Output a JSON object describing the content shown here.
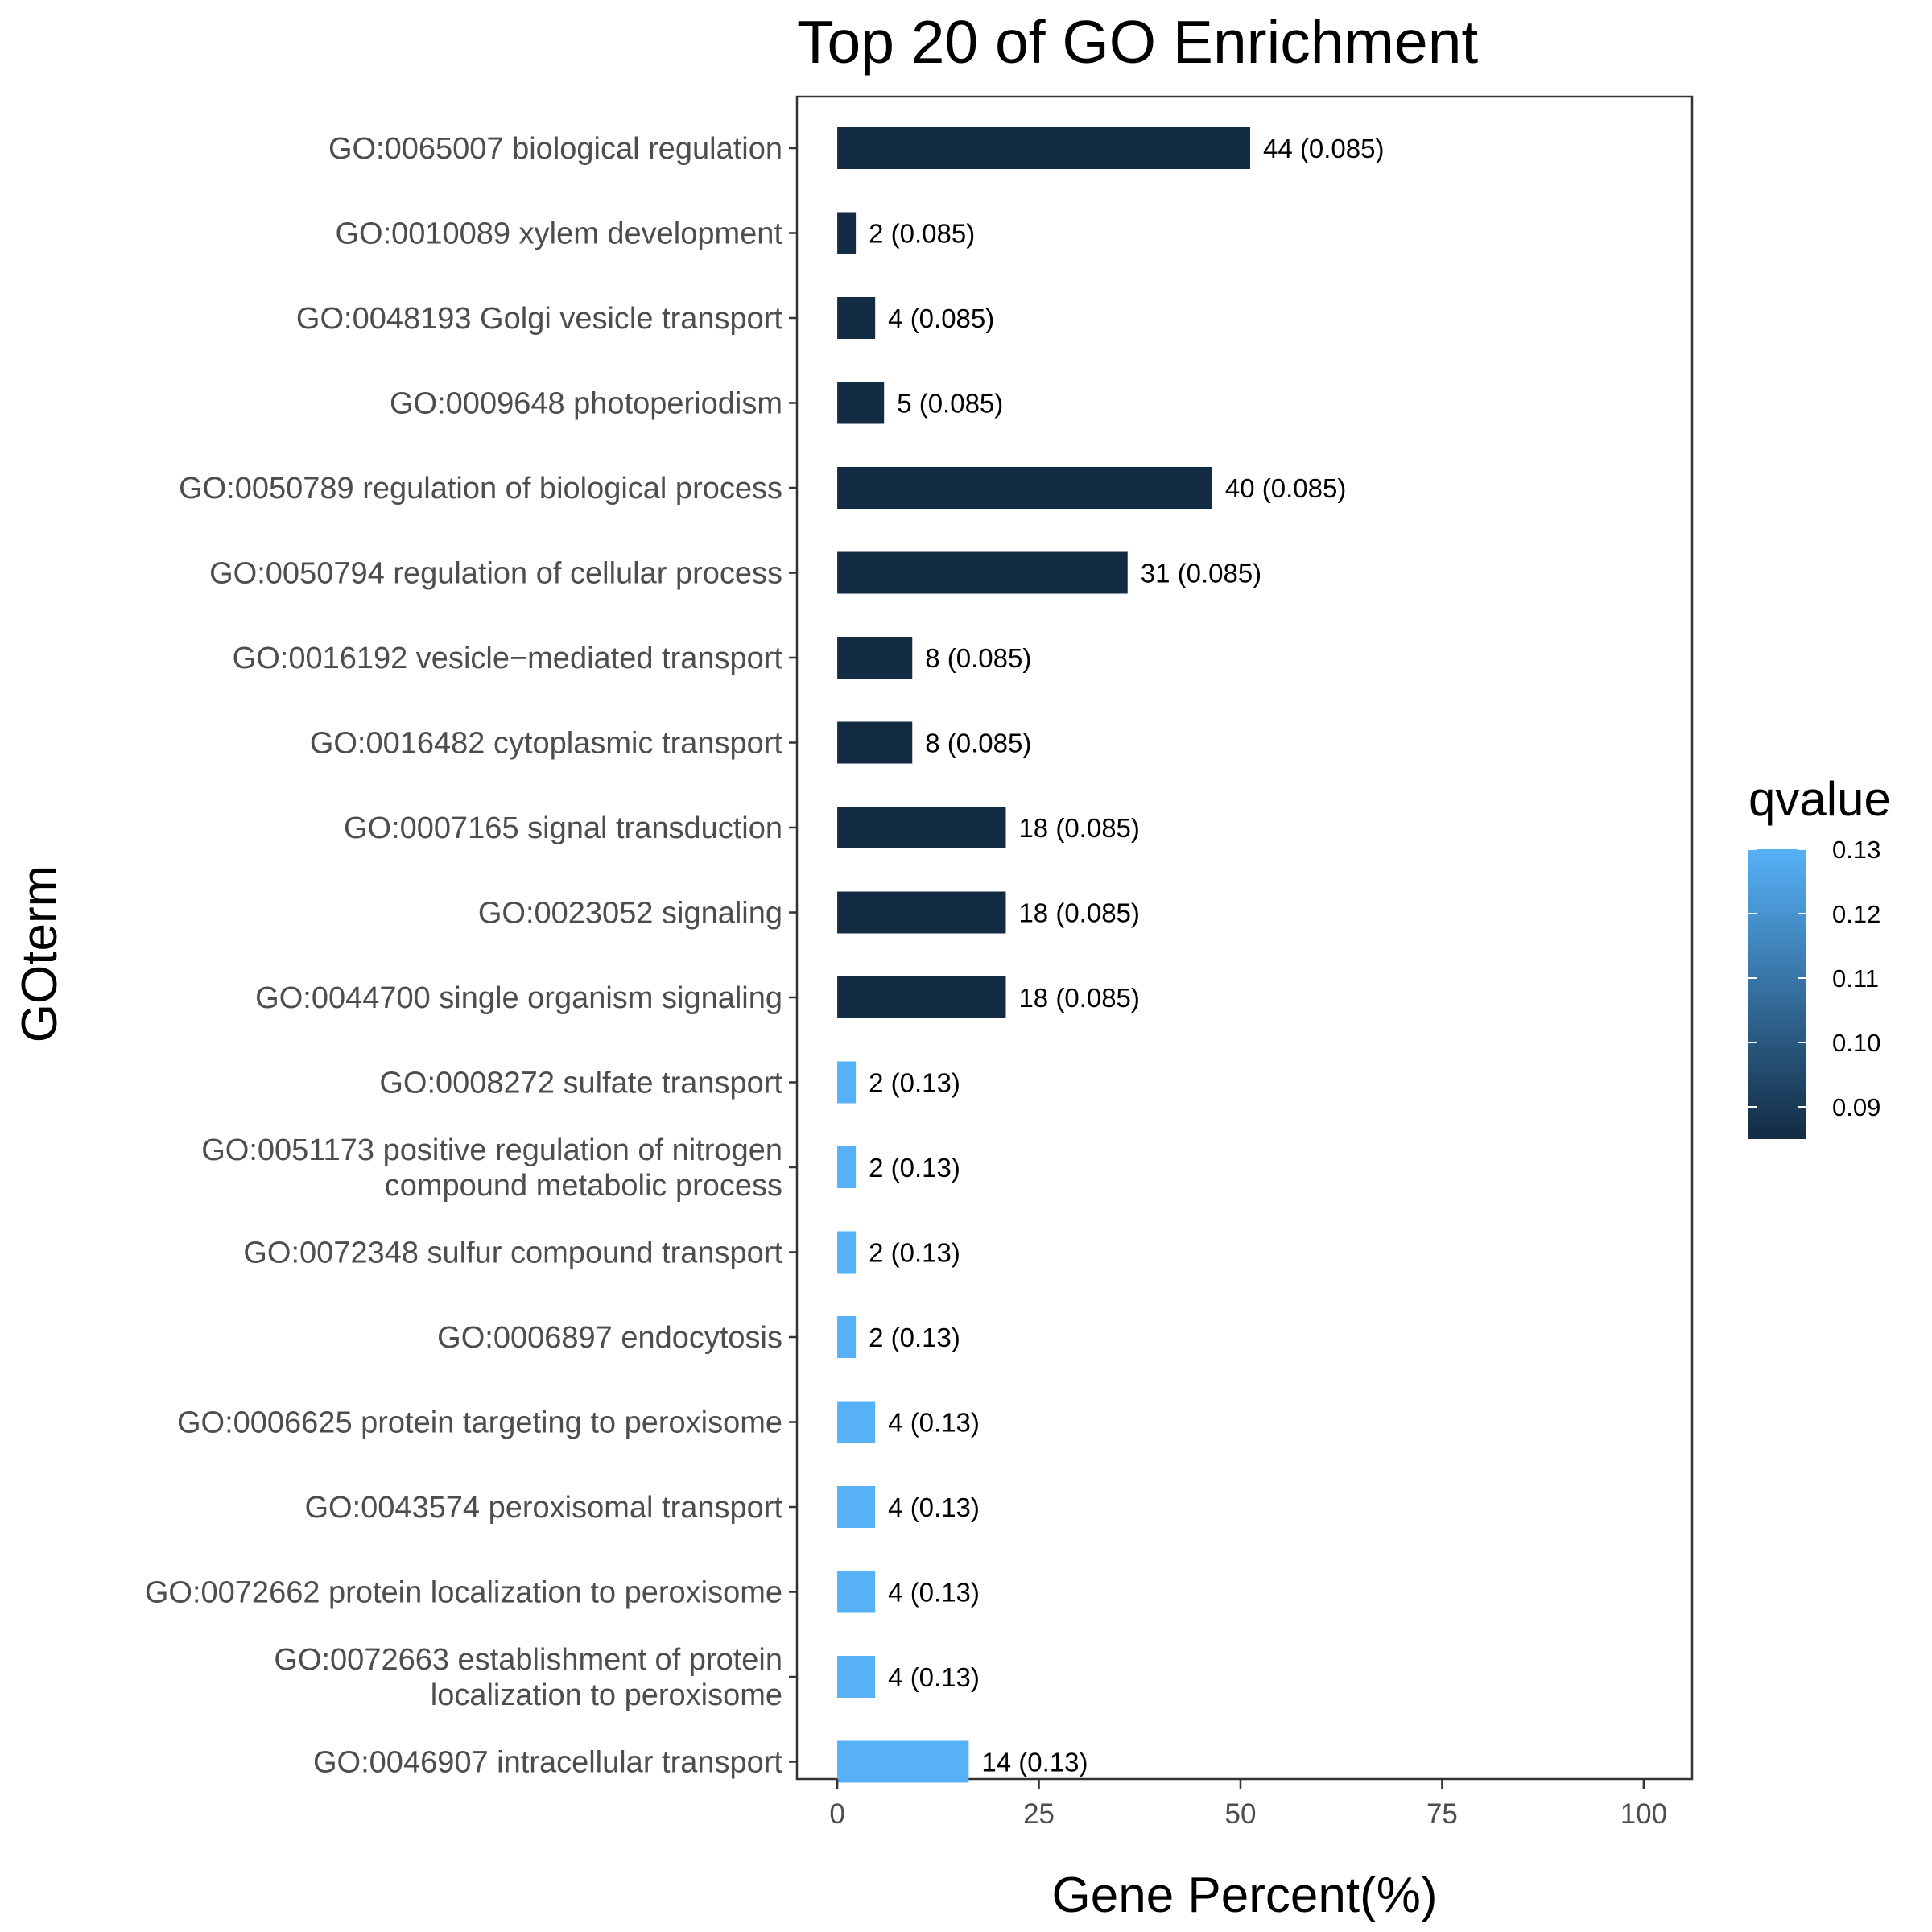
{
  "chart_data": {
    "type": "bar",
    "orientation": "horizontal",
    "title": "Top 20 of GO Enrichment",
    "xlabel": "Gene Percent(%)",
    "ylabel": "GOterm",
    "xlim": [
      -5,
      106
    ],
    "xticks": [
      0,
      25,
      50,
      75,
      100
    ],
    "grid": false,
    "legend": {
      "title": "qvalue",
      "position": "right",
      "type": "colorbar",
      "range": [
        0.085,
        0.13
      ],
      "ticks": [
        "0.09",
        "0.10",
        "0.11",
        "0.12",
        "0.13"
      ],
      "tick_values": [
        0.09,
        0.1,
        0.11,
        0.12,
        0.13
      ],
      "low_color": "#132b43",
      "high_color": "#56b1f7"
    },
    "series": [
      {
        "values": [
          51.2,
          2.3,
          4.7,
          5.8,
          46.5,
          36.0,
          9.3,
          9.3,
          20.9,
          20.9,
          20.9,
          2.3,
          2.3,
          2.3,
          2.3,
          4.7,
          4.7,
          4.7,
          4.7,
          16.3
        ],
        "qvalues": [
          0.085,
          0.085,
          0.085,
          0.085,
          0.085,
          0.085,
          0.085,
          0.085,
          0.085,
          0.085,
          0.085,
          0.13,
          0.13,
          0.13,
          0.13,
          0.13,
          0.13,
          0.13,
          0.13,
          0.13
        ]
      }
    ],
    "categories": [
      [
        "GO:0065007 biological regulation"
      ],
      [
        "GO:0010089 xylem development"
      ],
      [
        "GO:0048193 Golgi vesicle transport"
      ],
      [
        "GO:0009648 photoperiodism"
      ],
      [
        "GO:0050789 regulation of biological process"
      ],
      [
        "GO:0050794 regulation of cellular process"
      ],
      [
        "GO:0016192 vesicle−mediated transport"
      ],
      [
        "GO:0016482 cytoplasmic transport"
      ],
      [
        "GO:0007165 signal transduction"
      ],
      [
        "GO:0023052 signaling"
      ],
      [
        "GO:0044700 single organism signaling"
      ],
      [
        "GO:0008272 sulfate transport"
      ],
      [
        "GO:0051173 positive regulation of nitrogen",
        "compound metabolic process"
      ],
      [
        "GO:0072348 sulfur compound transport"
      ],
      [
        "GO:0006897 endocytosis"
      ],
      [
        "GO:0006625 protein targeting to peroxisome"
      ],
      [
        "GO:0043574 peroxisomal transport"
      ],
      [
        "GO:0072662 protein localization to peroxisome"
      ],
      [
        "GO:0072663 establishment of protein",
        "localization to peroxisome"
      ],
      [
        "GO:0046907 intracellular transport"
      ]
    ],
    "bar_labels": [
      "44 (0.085)",
      "2 (0.085)",
      "4 (0.085)",
      "5 (0.085)",
      "40 (0.085)",
      "31 (0.085)",
      "8 (0.085)",
      "8 (0.085)",
      "18 (0.085)",
      "18 (0.085)",
      "18 (0.085)",
      "2 (0.13)",
      "2 (0.13)",
      "2 (0.13)",
      "2 (0.13)",
      "4 (0.13)",
      "4 (0.13)",
      "4 (0.13)",
      "4 (0.13)",
      "14 (0.13)"
    ]
  }
}
